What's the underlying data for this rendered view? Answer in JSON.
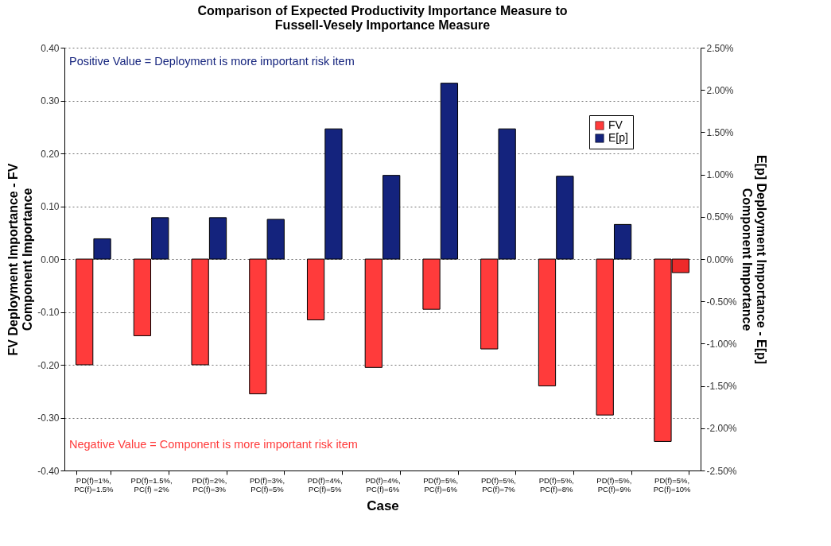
{
  "chart_data": {
    "type": "bar",
    "title": "Comparison of Expected Productivity Importance Measure to\nFussell-Vesely Importance Measure",
    "xlabel": "Case",
    "ylabel": "FV Deployment Importance - FV\nComponent Importance",
    "y2label": "E[p] Deployment Importance - E[p]\nComponent Importance",
    "categories": [
      "PD(f)=1%, PC(f)=1.5%",
      "PD(f)=1.5%, PC(f) =2%",
      "PD(f)=2%, PC(f)=3%",
      "PD(f)=3%, PC(f)=5%",
      "PD(f)=4%, PC(f)=5%",
      "PD(f)=4%, PC(f)=6%",
      "PD(f)=5%, PC(f)=6%",
      "PD(f)=5%, PC(f)=7%",
      "PD(f)=5%, PC(f)=8%",
      "PD(f)=5%, PC(f)=9%",
      "PD(f)=5%, PC(f)=10%"
    ],
    "series": [
      {
        "name": "FV",
        "color": "#ff3b3b",
        "values": [
          -0.2,
          -0.145,
          -0.2,
          -0.255,
          -0.115,
          -0.205,
          -0.095,
          -0.17,
          -0.24,
          -0.295,
          -0.345
        ]
      },
      {
        "name": "E[p]",
        "color": "#14237d",
        "axis": "y2",
        "colors": [
          "#14237d",
          "#14237d",
          "#14237d",
          "#14237d",
          "#14237d",
          "#14237d",
          "#14237d",
          "#14237d",
          "#14237d",
          "#14237d",
          "#ee2a2a"
        ],
        "values": [
          0.24,
          0.49,
          0.49,
          0.47,
          1.54,
          0.99,
          2.08,
          1.54,
          0.98,
          0.41,
          -0.16
        ]
      }
    ],
    "ylim": [
      -0.4,
      0.4
    ],
    "yticks": [
      {
        "value": -0.4,
        "label": "-0.40"
      },
      {
        "value": -0.3,
        "label": "-0.30"
      },
      {
        "value": -0.2,
        "label": "-0.20"
      },
      {
        "value": -0.1,
        "label": "-0.10"
      },
      {
        "value": 0,
        "label": "0.00"
      },
      {
        "value": 0.1,
        "label": "0.10"
      },
      {
        "value": 0.2,
        "label": "0.20"
      },
      {
        "value": 0.3,
        "label": "0.30"
      },
      {
        "value": 0.4,
        "label": "0.40"
      }
    ],
    "y2lim": [
      -2.5,
      2.5
    ],
    "y2ticks": [
      {
        "value": -2.5,
        "label": "-2.50%"
      },
      {
        "value": -2,
        "label": "-2.00%"
      },
      {
        "value": -1.5,
        "label": "-1.50%"
      },
      {
        "value": -1,
        "label": "-1.00%"
      },
      {
        "value": -0.5,
        "label": "-0.50%"
      },
      {
        "value": 0,
        "label": "0.00%"
      },
      {
        "value": 0.5,
        "label": "0.50%"
      },
      {
        "value": 1,
        "label": "1.00%"
      },
      {
        "value": 1.5,
        "label": "1.50%"
      },
      {
        "value": 2,
        "label": "2.00%"
      },
      {
        "value": 2.5,
        "label": "2.50%"
      }
    ],
    "grid": "y",
    "legend": "top right",
    "annotations": [
      "Positive Value = Deployment is more important risk item",
      "Negative Value = Component is more important risk item"
    ]
  }
}
